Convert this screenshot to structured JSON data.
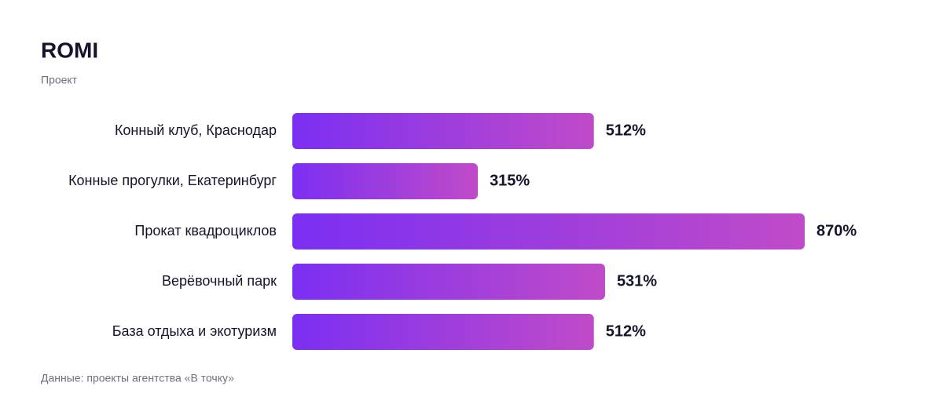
{
  "chart_data": {
    "type": "bar",
    "orientation": "horizontal",
    "title": "ROMI",
    "subtitle": "Проект",
    "categories": [
      "Конный клуб, Краснодар",
      "Конные прогулки, Екатеринбург",
      "Прокат квадроциклов",
      "Верёвочный парк",
      "База отдыха и экотуризм"
    ],
    "values": [
      512,
      315,
      870,
      531,
      512
    ],
    "value_labels": [
      "512%",
      "315%",
      "870%",
      "531%",
      "512%"
    ],
    "color": [
      "#7b2ff2",
      "#c04bc9"
    ],
    "source": "Данные: проекты агентства «В точку»"
  }
}
